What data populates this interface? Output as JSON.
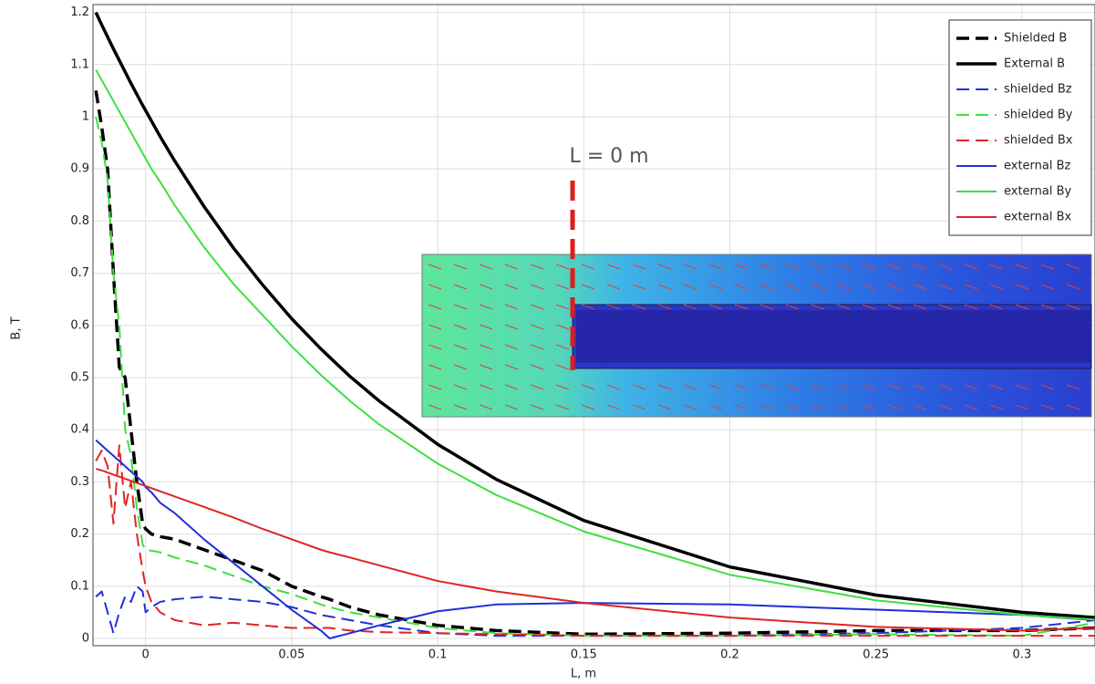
{
  "chart_data": {
    "type": "line",
    "xlabel": "L, m",
    "ylabel": "B, T",
    "annotation": "L = 0 m",
    "xlim": [
      -0.018,
      0.325
    ],
    "ylim": [
      -0.014,
      1.215
    ],
    "xticks": [
      0,
      0.05,
      0.1,
      0.15,
      0.2,
      0.25,
      0.3
    ],
    "yticks": [
      0,
      0.1,
      0.2,
      0.3,
      0.4,
      0.5,
      0.6,
      0.7,
      0.8,
      0.9,
      1,
      1.1,
      1.2
    ],
    "grid": true,
    "legend": "upper right",
    "x": [
      -0.017,
      -0.015,
      -0.013,
      -0.011,
      -0.009,
      -0.007,
      -0.005,
      -0.003,
      -0.001,
      0,
      0.002,
      0.005,
      0.01,
      0.02,
      0.03,
      0.04,
      0.05,
      0.06,
      0.063,
      0.07,
      0.08,
      0.1,
      0.12,
      0.15,
      0.2,
      0.25,
      0.3,
      0.325
    ],
    "series": [
      {
        "name": "Shielded B",
        "color": "#000000",
        "dashed": true,
        "width": 3.5,
        "values": [
          1.05,
          0.98,
          0.9,
          0.7,
          0.52,
          0.5,
          0.4,
          0.3,
          0.22,
          0.21,
          0.2,
          0.195,
          0.19,
          0.17,
          0.15,
          0.13,
          0.1,
          0.08,
          0.075,
          0.06,
          0.045,
          0.025,
          0.015,
          0.008,
          0.01,
          0.015,
          0.015,
          0.02
        ]
      },
      {
        "name": "External B",
        "color": "#000000",
        "dashed": false,
        "width": 3.5,
        "values": [
          1.2,
          1.176,
          1.153,
          1.13,
          1.108,
          1.086,
          1.064,
          1.043,
          1.022,
          1.012,
          0.992,
          0.962,
          0.915,
          0.828,
          0.749,
          0.678,
          0.613,
          0.555,
          0.539,
          0.502,
          0.455,
          0.372,
          0.305,
          0.226,
          0.137,
          0.083,
          0.05,
          0.04
        ]
      },
      {
        "name": "shielded Bz",
        "color": "#1f2fd8",
        "dashed": true,
        "width": 2,
        "values": [
          0.08,
          0.09,
          0.05,
          0.01,
          0.05,
          0.08,
          0.07,
          0.1,
          0.09,
          0.05,
          0.06,
          0.07,
          0.075,
          0.08,
          0.075,
          0.07,
          0.06,
          0.045,
          0.042,
          0.035,
          0.025,
          0.01,
          0.005,
          0.005,
          0.005,
          0.01,
          0.02,
          0.035
        ]
      },
      {
        "name": "shielded By",
        "color": "#3ee03e",
        "dashed": true,
        "width": 2,
        "values": [
          1.0,
          0.95,
          0.88,
          0.7,
          0.6,
          0.4,
          0.35,
          0.25,
          0.18,
          0.17,
          0.168,
          0.165,
          0.155,
          0.14,
          0.12,
          0.1,
          0.085,
          0.065,
          0.06,
          0.05,
          0.04,
          0.02,
          0.01,
          0.005,
          0.005,
          0.008,
          0.005,
          0.03
        ]
      },
      {
        "name": "shielded Bx",
        "color": "#e02424",
        "dashed": true,
        "width": 2,
        "values": [
          0.34,
          0.36,
          0.33,
          0.22,
          0.37,
          0.25,
          0.3,
          0.2,
          0.13,
          0.1,
          0.07,
          0.05,
          0.035,
          0.025,
          0.03,
          0.025,
          0.02,
          0.02,
          0.02,
          0.015,
          0.012,
          0.01,
          0.008,
          0.005,
          0.005,
          0.005,
          0.005,
          0.005
        ]
      },
      {
        "name": "external Bz",
        "color": "#1f2fd8",
        "dashed": false,
        "width": 2,
        "values": [
          0.38,
          0.37,
          0.36,
          0.35,
          0.34,
          0.33,
          0.32,
          0.31,
          0.3,
          0.29,
          0.28,
          0.26,
          0.24,
          0.19,
          0.145,
          0.1,
          0.055,
          0.015,
          0.0,
          0.01,
          0.025,
          0.052,
          0.065,
          0.068,
          0.065,
          0.055,
          0.045,
          0.035
        ]
      },
      {
        "name": "external By",
        "color": "#3ee03e",
        "dashed": false,
        "width": 2,
        "values": [
          1.09,
          1.07,
          1.05,
          1.03,
          1.01,
          0.99,
          0.97,
          0.95,
          0.93,
          0.92,
          0.9,
          0.875,
          0.83,
          0.75,
          0.68,
          0.62,
          0.56,
          0.505,
          0.49,
          0.455,
          0.41,
          0.335,
          0.275,
          0.205,
          0.122,
          0.073,
          0.045,
          0.036
        ]
      },
      {
        "name": "external Bx",
        "color": "#e02424",
        "dashed": false,
        "width": 2,
        "values": [
          0.325,
          0.322,
          0.318,
          0.314,
          0.31,
          0.306,
          0.302,
          0.298,
          0.294,
          0.292,
          0.288,
          0.282,
          0.272,
          0.252,
          0.232,
          0.21,
          0.19,
          0.17,
          0.165,
          0.155,
          0.14,
          0.11,
          0.09,
          0.068,
          0.04,
          0.022,
          0.015,
          0.02
        ]
      }
    ]
  }
}
